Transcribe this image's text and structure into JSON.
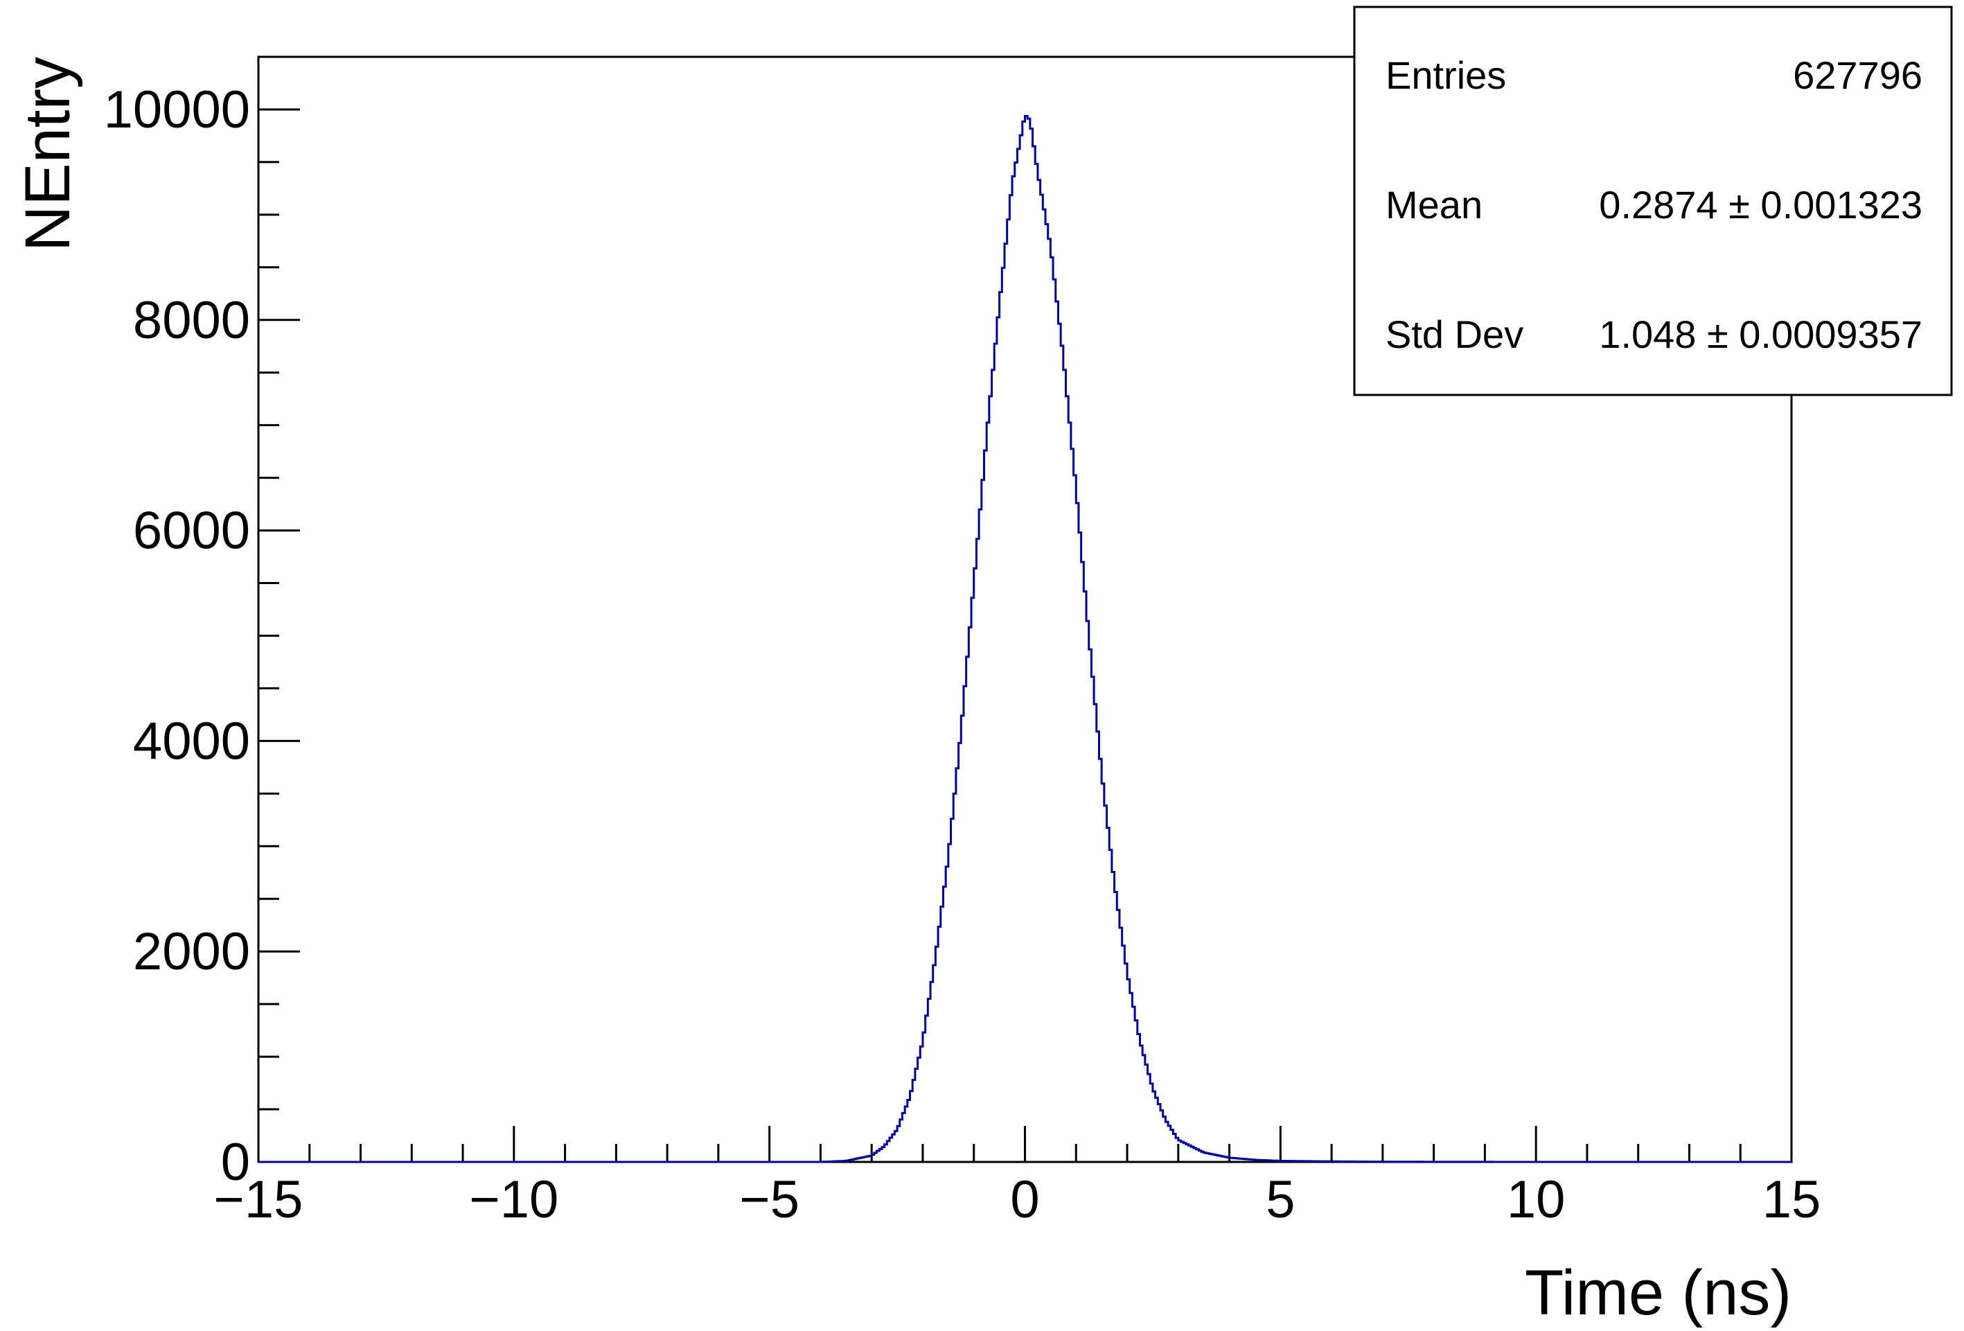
{
  "chart_data": {
    "type": "histogram",
    "xlabel": "Time (ns)",
    "ylabel": "NEntry",
    "xlim": [
      -15,
      15
    ],
    "ylim": [
      0,
      10500
    ],
    "x_ticks": [
      -15,
      -10,
      -5,
      0,
      5,
      10,
      15
    ],
    "x_tick_labels": [
      "−15",
      "−10",
      "−5",
      "0",
      "5",
      "10",
      "15"
    ],
    "y_ticks": [
      0,
      2000,
      4000,
      6000,
      8000,
      10000
    ],
    "y_tick_labels": [
      "0",
      "2000",
      "4000",
      "6000",
      "8000",
      "10000"
    ],
    "line_color": "#000099",
    "grid": false,
    "legend": "none",
    "stats": {
      "placement": "top-right",
      "rows": [
        {
          "label": "Entries",
          "value": "627796"
        },
        {
          "label": "Mean",
          "value": "0.2874 ± 0.001323"
        },
        {
          "label": "Std Dev",
          "value": "1.048 ± 0.0009357"
        }
      ]
    },
    "series": [
      {
        "x": [
          -4.0,
          -3.5,
          -3.0,
          -2.75,
          -2.5,
          -2.25,
          -2.0,
          -1.75,
          -1.5,
          -1.25,
          -1.0,
          -0.75,
          -0.5,
          -0.25,
          0.0,
          0.1,
          0.25,
          0.5,
          0.75,
          1.0,
          1.25,
          1.5,
          1.75,
          2.0,
          2.25,
          2.5,
          2.75,
          3.0,
          3.5,
          4.0,
          4.5,
          5.0,
          6.0,
          7.0,
          8.0,
          10.0
        ],
        "y": [
          0,
          10,
          60,
          150,
          310,
          620,
          1150,
          1950,
          2900,
          4100,
          5500,
          6900,
          8150,
          9300,
          9950,
          9900,
          9400,
          8700,
          7650,
          6400,
          5000,
          3700,
          2650,
          1800,
          1150,
          700,
          400,
          210,
          90,
          40,
          20,
          10,
          5,
          2,
          1,
          0
        ]
      }
    ]
  }
}
